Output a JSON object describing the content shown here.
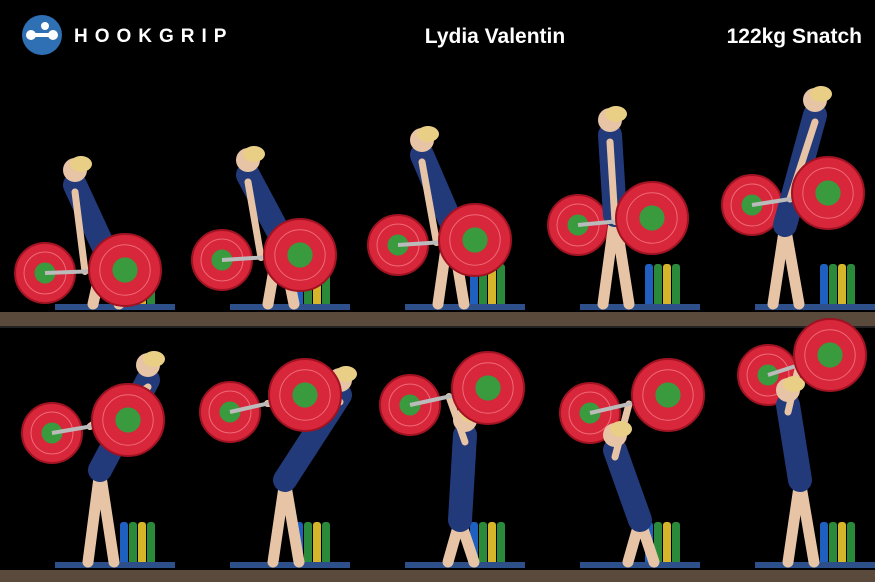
{
  "header": {
    "logo": "HOOKGRIP",
    "athlete": "Lydia Valentin",
    "lift": "122kg Snatch"
  }
}
